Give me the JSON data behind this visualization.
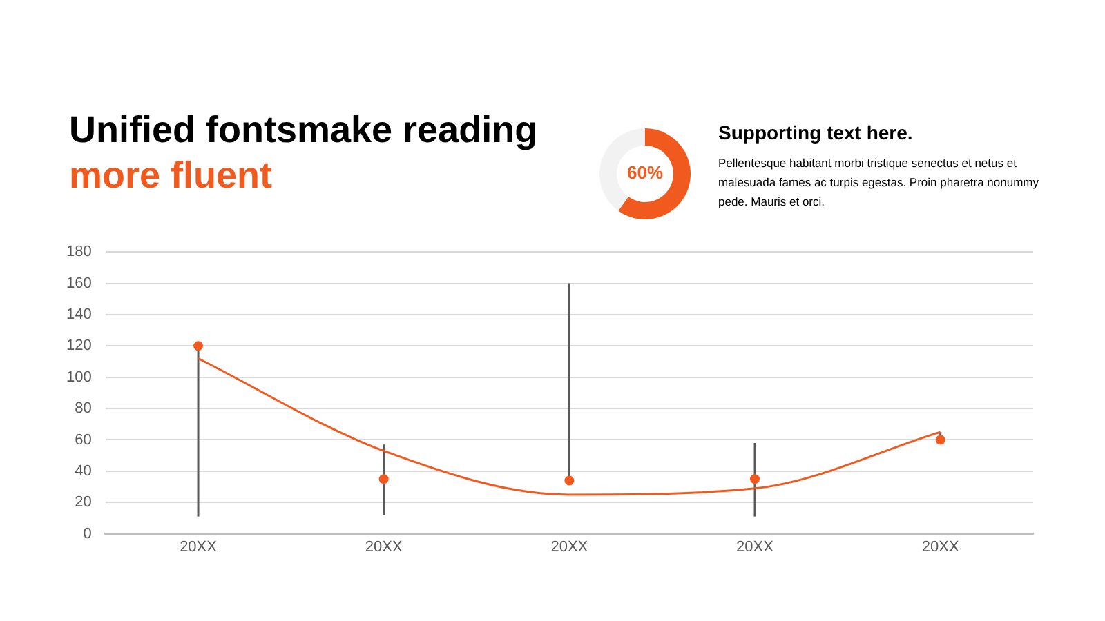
{
  "chart_data": [
    {
      "type": "scatter",
      "title": "Unified fontsmake reading",
      "subtitle": "more fluent",
      "categories": [
        "20XX",
        "20XX",
        "20XX",
        "20XX",
        "20XX"
      ],
      "series": [
        {
          "type": "scatter",
          "marker": "circle",
          "color": "#f05a1e",
          "values": [
            120,
            35,
            34,
            35,
            60
          ],
          "errors": [
            [
              11,
              120
            ],
            [
              12,
              57
            ],
            [
              34,
              160
            ],
            [
              11,
              58
            ],
            [
              60,
              65
            ]
          ]
        },
        {
          "type": "line",
          "marker": "none",
          "color": "#f05a1e",
          "values": [
            112,
            53,
            25,
            29,
            65
          ]
        }
      ],
      "ylim": [
        0,
        180
      ],
      "yticks": [
        0,
        20,
        40,
        60,
        80,
        100,
        120,
        140,
        160,
        180
      ],
      "grid": "y",
      "legend": false
    },
    {
      "type": "donut",
      "categories": [
        null,
        null
      ],
      "values": [
        60,
        40
      ],
      "colors": [
        "#f05a1e",
        "#f2f2f2"
      ],
      "value_labels": [
        "60%",
        null
      ],
      "annotations": [
        "Supporting text here.",
        "Pellentesque habitant morbi tristique senectus et netus et malesuada fames ac turpis egestas. Proin pharetra nonummy pede. Mauris et orci."
      ]
    }
  ]
}
